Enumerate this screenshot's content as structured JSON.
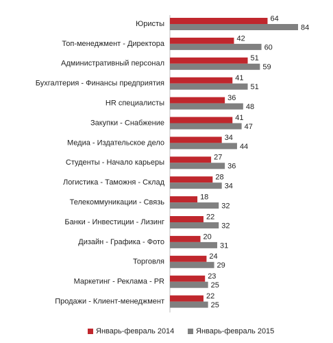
{
  "chart_data": {
    "type": "bar",
    "orientation": "horizontal",
    "categories": [
      "Юристы",
      "Топ-менеджмент - Директора",
      "Административный персонал",
      "Бухгалтерия - Финансы предприятия",
      "HR специалисты",
      "Закупки - Снабжение",
      "Медиа - Издательское дело",
      "Студенты - Начало карьеры",
      "Логистика - Таможня - Склад",
      "Телекоммуникации - Связь",
      "Банки - Инвестиции - Лизинг",
      "Дизайн - Графика - Фото",
      "Торговля",
      "Маркетинг - Реклама - PR",
      "Продажи - Клиент-менеджмент"
    ],
    "series": [
      {
        "name": "Январь-февраль 2014",
        "color": "#c0272d",
        "values": [
          64,
          42,
          51,
          41,
          36,
          41,
          34,
          27,
          28,
          18,
          22,
          20,
          24,
          23,
          22
        ]
      },
      {
        "name": "Январь-февраль 2015",
        "color": "#808080",
        "values": [
          84,
          60,
          59,
          51,
          48,
          47,
          44,
          36,
          34,
          32,
          32,
          31,
          29,
          25,
          25
        ]
      }
    ],
    "legend": "bottom"
  }
}
